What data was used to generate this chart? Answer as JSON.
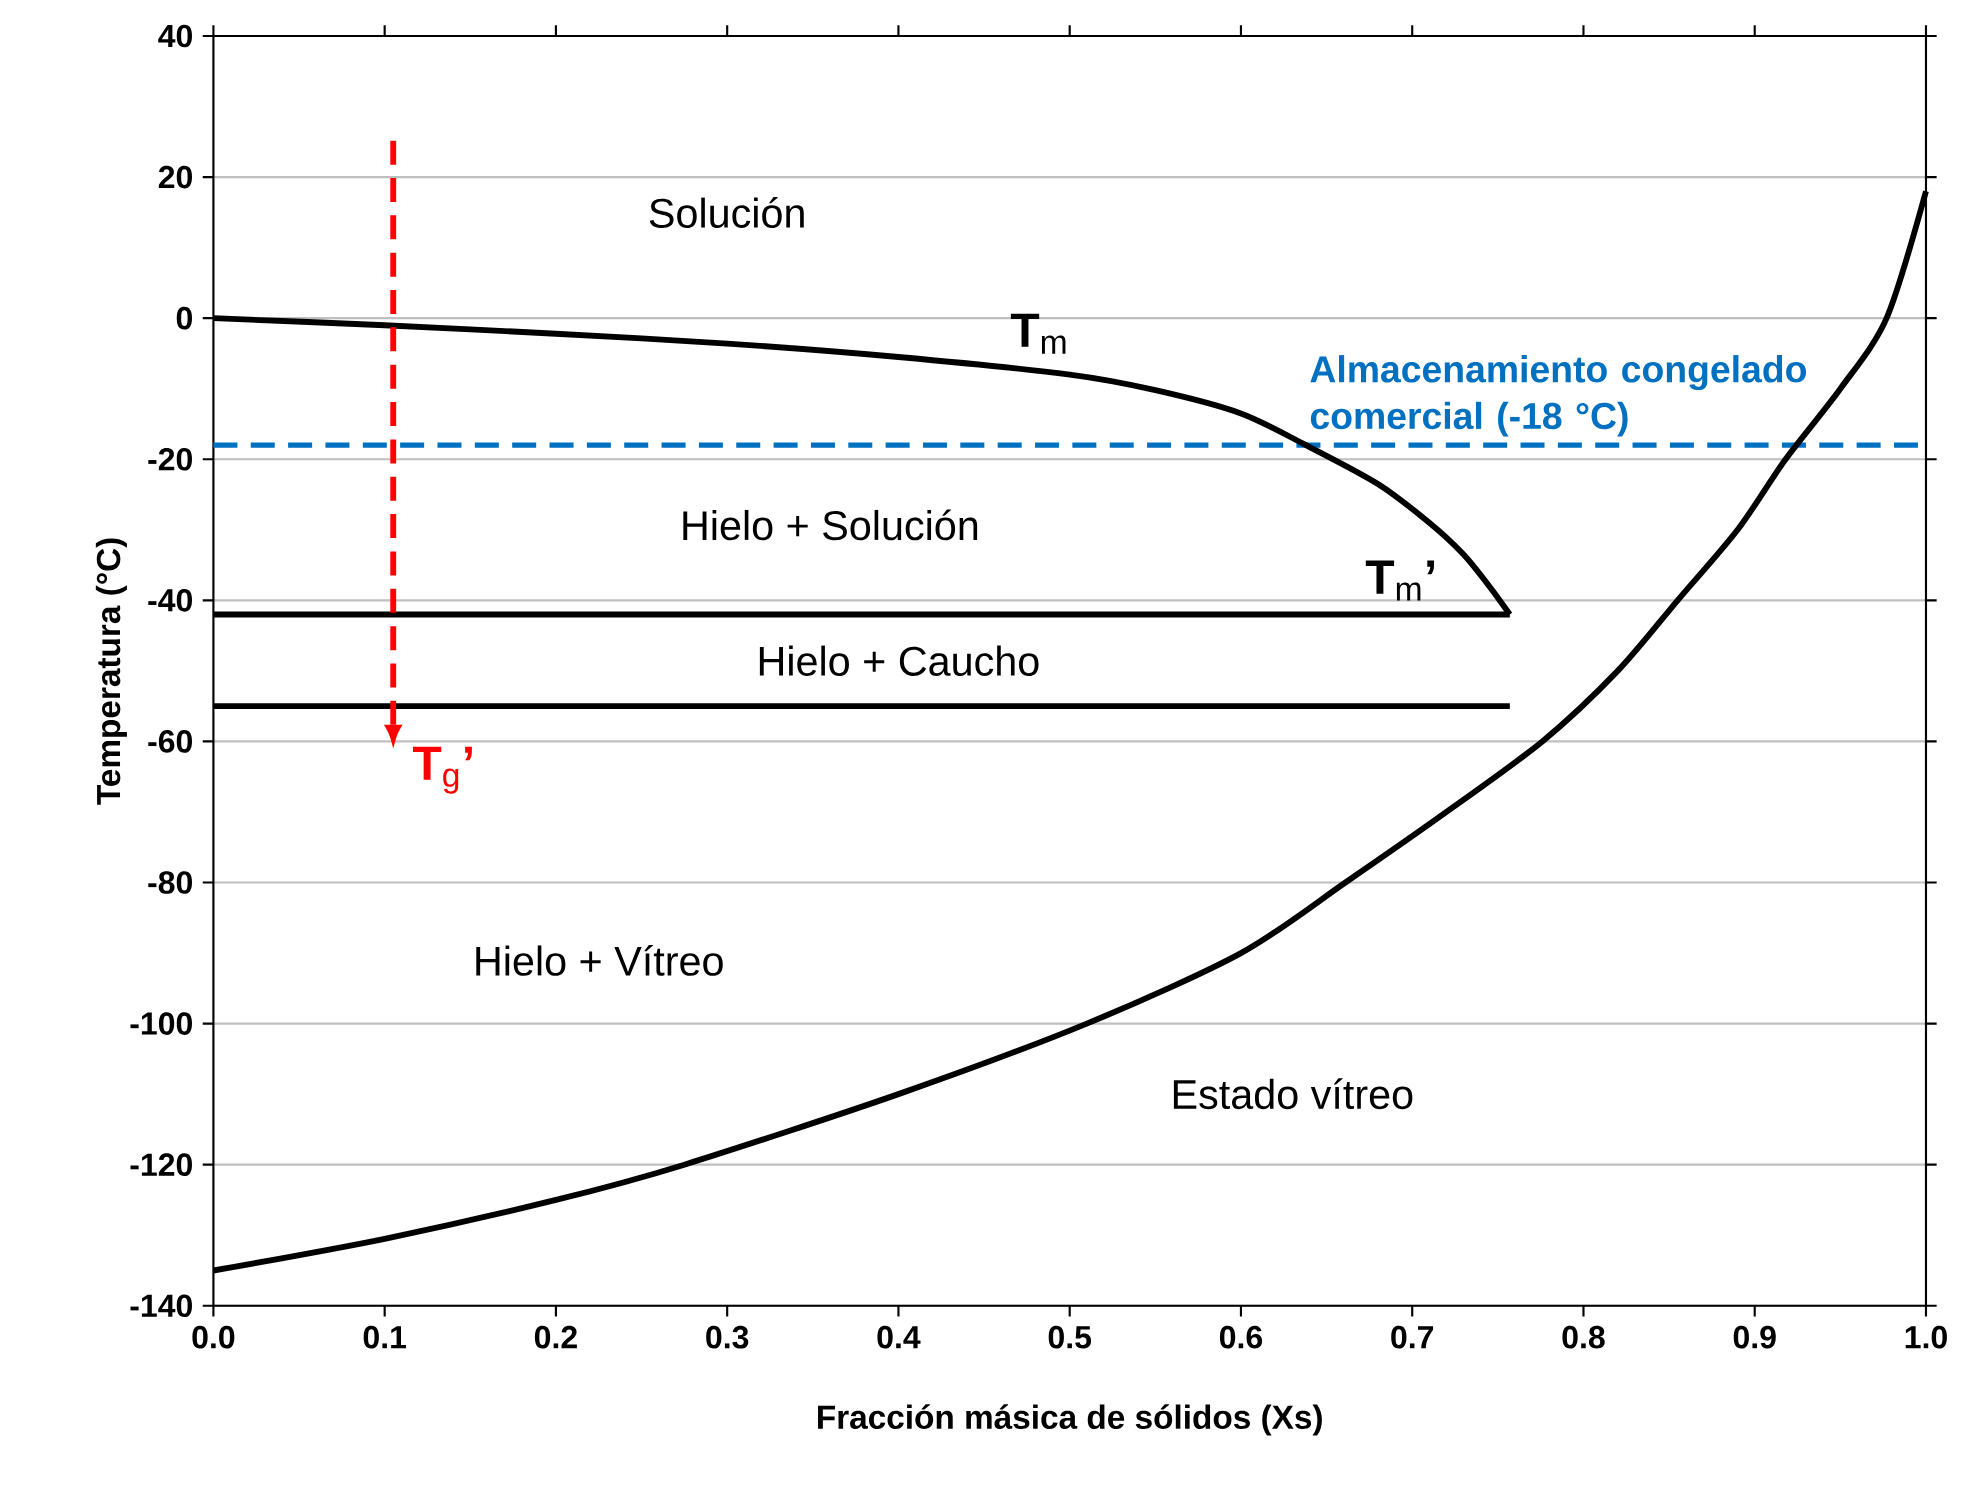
{
  "chart_data": {
    "type": "line",
    "xlabel": "Fracción másica de sólidos (Xs)",
    "ylabel": "Temperatura (°C)",
    "xlim": [
      0,
      1
    ],
    "ylim": [
      -140,
      40
    ],
    "xticks": [
      {
        "value": 0,
        "label": "0.0"
      },
      {
        "value": 0.1,
        "label": "0.1"
      },
      {
        "value": 0.2,
        "label": "0.2"
      },
      {
        "value": 0.3,
        "label": "0.3"
      },
      {
        "value": 0.4,
        "label": "0.4"
      },
      {
        "value": 0.5,
        "label": "0.5"
      },
      {
        "value": 0.6,
        "label": "0.6"
      },
      {
        "value": 0.7,
        "label": "0.7"
      },
      {
        "value": 0.8,
        "label": "0.8"
      },
      {
        "value": 0.9,
        "label": "0.9"
      },
      {
        "value": 1,
        "label": "1.0"
      }
    ],
    "yticks": [
      -140,
      -120,
      -100,
      -80,
      -60,
      -40,
      -20,
      0,
      20,
      40
    ],
    "grid": "y",
    "series": [
      {
        "color": "#000000",
        "x": [
          0,
          0.1,
          0.2,
          0.3,
          0.4,
          0.5,
          0.55,
          0.6,
          0.638,
          0.68,
          0.71,
          0.73,
          0.745,
          0.757
        ],
        "values": [
          0,
          -1,
          -2.2,
          -3.6,
          -5.5,
          -8,
          -10.2,
          -13.5,
          -18,
          -23.5,
          -29,
          -33.5,
          -38,
          -42
        ]
      },
      {
        "color": "#000000",
        "x": [
          0,
          0.757
        ],
        "values": [
          -42,
          -42
        ]
      },
      {
        "color": "#000000",
        "x": [
          0,
          0.757
        ],
        "values": [
          -55,
          -55
        ]
      },
      {
        "color": "#000000",
        "x": [
          0,
          0.1,
          0.2,
          0.275,
          0.4,
          0.51,
          0.6,
          0.661,
          0.72,
          0.776,
          0.82,
          0.855,
          0.89,
          0.918,
          0.95,
          0.977,
          1.0
        ],
        "values": [
          -135,
          -130.5,
          -125,
          -120,
          -110,
          -100,
          -90,
          -80,
          -70,
          -60,
          -50,
          -40,
          -30,
          -20,
          -10,
          0,
          18
        ]
      }
    ],
    "ref_lines": [
      {
        "axis": "y",
        "value": -18,
        "label": "Almacenamiento congelado comercial (-18 °C)",
        "color": "#0070c0",
        "line_style": "dashed"
      }
    ],
    "annotations": [
      "Solución",
      "Hielo + Solución",
      "Hielo + Caucho",
      "Hielo + Vítreo",
      "Estado vítreo",
      {
        "text": "**T**$_{m}$",
        "x": 0.47,
        "y": -7
      },
      {
        "text": "**T**$_{m}$**’**",
        "x": 0.757,
        "y": -42
      },
      {
        "text": "**T**$_{g}$**’**",
        "x": 0.105,
        "y": -55
      }
    ]
  }
}
